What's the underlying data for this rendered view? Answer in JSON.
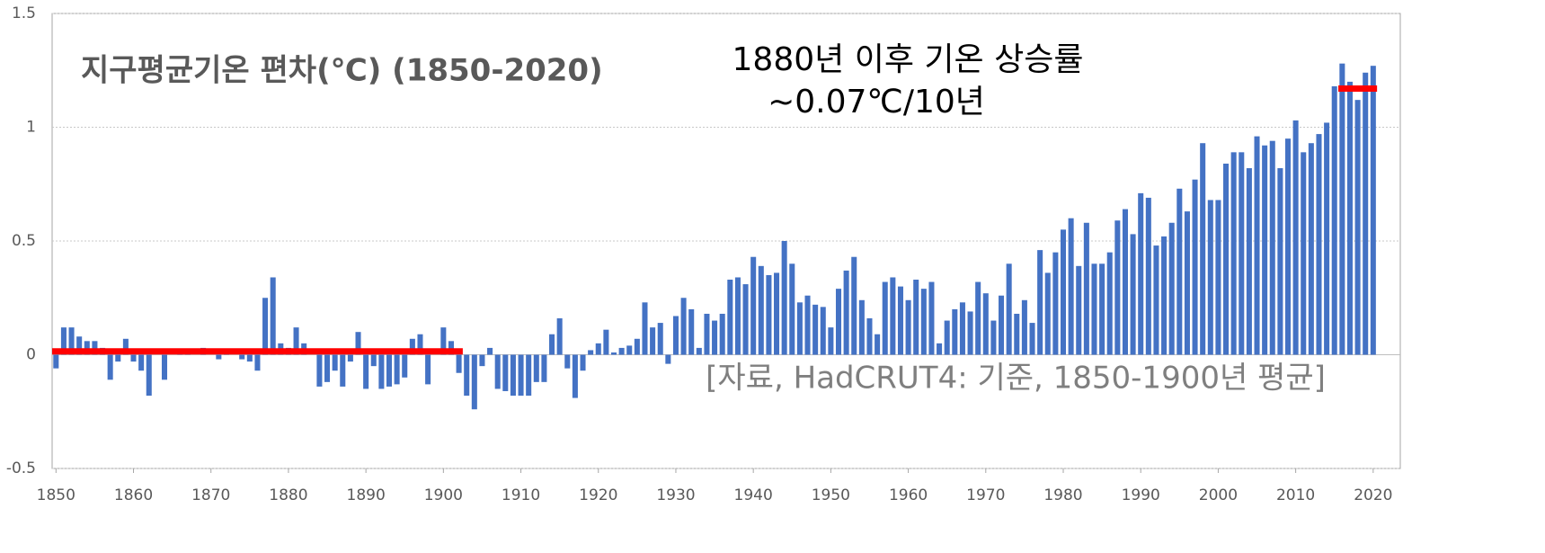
{
  "chart_data": {
    "type": "bar",
    "title": "지구평균기온 편차(℃) (1850-2020)",
    "annotations": [
      "1880년 이후 기온 상승률",
      "~0.07℃/10년"
    ],
    "source": "[자료, HadCRUT4: 기준, 1850-1900년 평균]",
    "x_start": 1850,
    "values": [
      -0.06,
      0.12,
      0.12,
      0.08,
      0.06,
      0.06,
      0.03,
      -0.11,
      -0.03,
      0.07,
      -0.03,
      -0.07,
      -0.18,
      0.0,
      -0.11,
      0.0,
      0.01,
      0.01,
      0.0,
      0.03,
      0.0,
      -0.02,
      0.02,
      0.0,
      -0.02,
      -0.03,
      -0.07,
      0.25,
      0.34,
      0.05,
      0.03,
      0.12,
      0.05,
      0.0,
      -0.14,
      -0.12,
      -0.07,
      -0.14,
      -0.03,
      0.1,
      -0.15,
      -0.05,
      -0.15,
      -0.14,
      -0.13,
      -0.1,
      0.07,
      0.09,
      -0.13,
      0.0,
      0.12,
      0.06,
      -0.08,
      -0.18,
      -0.24,
      -0.05,
      0.03,
      -0.15,
      -0.16,
      -0.18,
      -0.18,
      -0.18,
      -0.12,
      -0.12,
      0.09,
      0.16,
      -0.06,
      -0.19,
      -0.07,
      0.02,
      0.05,
      0.11,
      0.01,
      0.03,
      0.04,
      0.07,
      0.23,
      0.12,
      0.14,
      -0.04,
      0.17,
      0.25,
      0.2,
      0.03,
      0.18,
      0.15,
      0.18,
      0.33,
      0.34,
      0.31,
      0.43,
      0.39,
      0.35,
      0.36,
      0.5,
      0.4,
      0.23,
      0.26,
      0.22,
      0.21,
      0.12,
      0.29,
      0.37,
      0.43,
      0.24,
      0.16,
      0.09,
      0.32,
      0.34,
      0.3,
      0.24,
      0.33,
      0.29,
      0.32,
      0.05,
      0.15,
      0.2,
      0.23,
      0.19,
      0.32,
      0.27,
      0.15,
      0.26,
      0.4,
      0.18,
      0.24,
      0.14,
      0.46,
      0.36,
      0.45,
      0.55,
      0.6,
      0.39,
      0.58,
      0.4,
      0.4,
      0.45,
      0.59,
      0.64,
      0.53,
      0.71,
      0.69,
      0.48,
      0.52,
      0.58,
      0.73,
      0.63,
      0.77,
      0.93,
      0.68,
      0.68,
      0.84,
      0.89,
      0.89,
      0.82,
      0.96,
      0.92,
      0.94,
      0.82,
      0.95,
      1.03,
      0.89,
      0.93,
      0.97,
      1.02,
      1.18,
      1.28,
      1.2,
      1.12,
      1.24,
      1.27
    ],
    "color": "#4472c4",
    "reference_lines": [
      {
        "x": [
          1850,
          1902
        ],
        "value": 0.015,
        "color": "#ff0000"
      },
      {
        "x": [
          2016,
          2020
        ],
        "value": 1.17,
        "color": "#ff0000"
      }
    ],
    "xlim": [
      1849.5,
      2023.5
    ],
    "xticks": [
      1850,
      1860,
      1870,
      1880,
      1890,
      1900,
      1910,
      1920,
      1930,
      1940,
      1950,
      1960,
      1970,
      1980,
      1990,
      2000,
      2010,
      2020
    ],
    "ylim": [
      -0.5,
      1.5
    ],
    "yticks": [
      -0.5,
      0,
      0.5,
      1,
      1.5
    ],
    "grid": true
  }
}
